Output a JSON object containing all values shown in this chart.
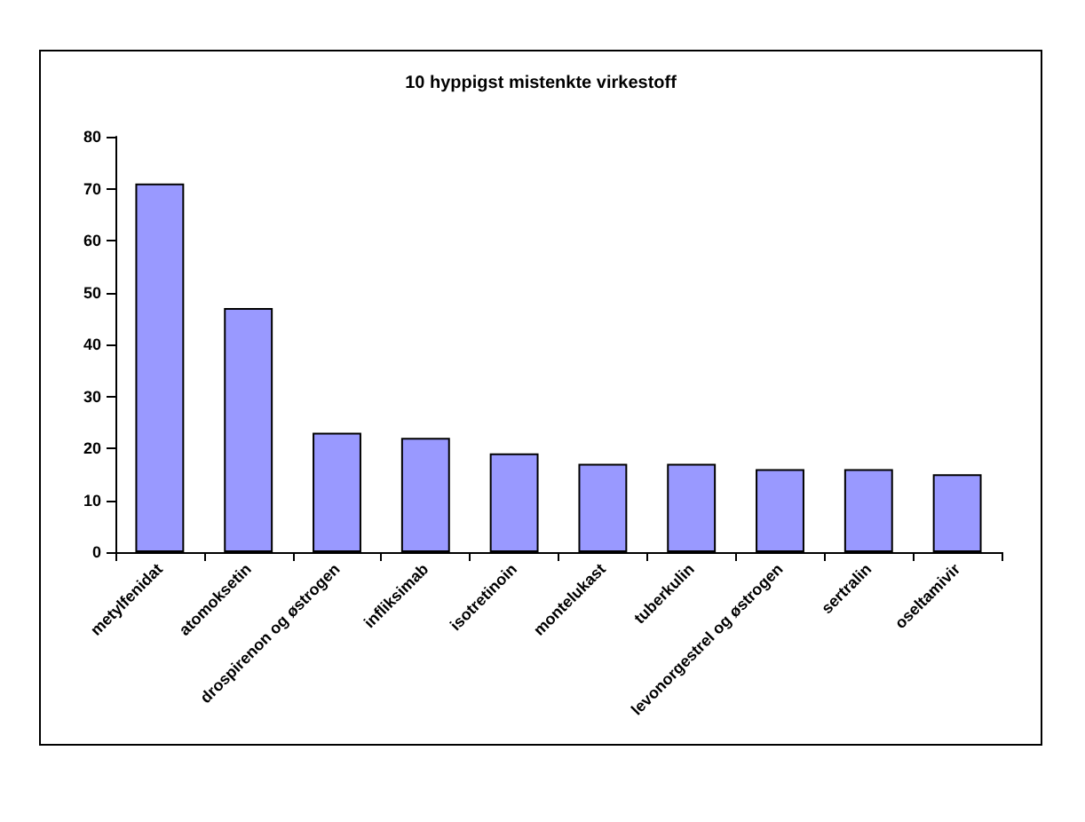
{
  "chart_data": {
    "type": "bar",
    "title": "10 hyppigst mistenkte virkestoff",
    "categories": [
      "metylfenidat",
      "atomoksetin",
      "drospirenon og østrogen",
      "infliksimab",
      "isotretinoin",
      "montelukast",
      "tuberkulin",
      "levonorgestrel og østrogen",
      "sertralin",
      "oseltamivir"
    ],
    "values": [
      71,
      47,
      23,
      22,
      19,
      17,
      17,
      16,
      16,
      15
    ],
    "color": "#9999ff",
    "ylim": [
      0,
      80
    ],
    "yticks": [
      0,
      10,
      20,
      30,
      40,
      50,
      60,
      70,
      80
    ],
    "grid": false
  }
}
